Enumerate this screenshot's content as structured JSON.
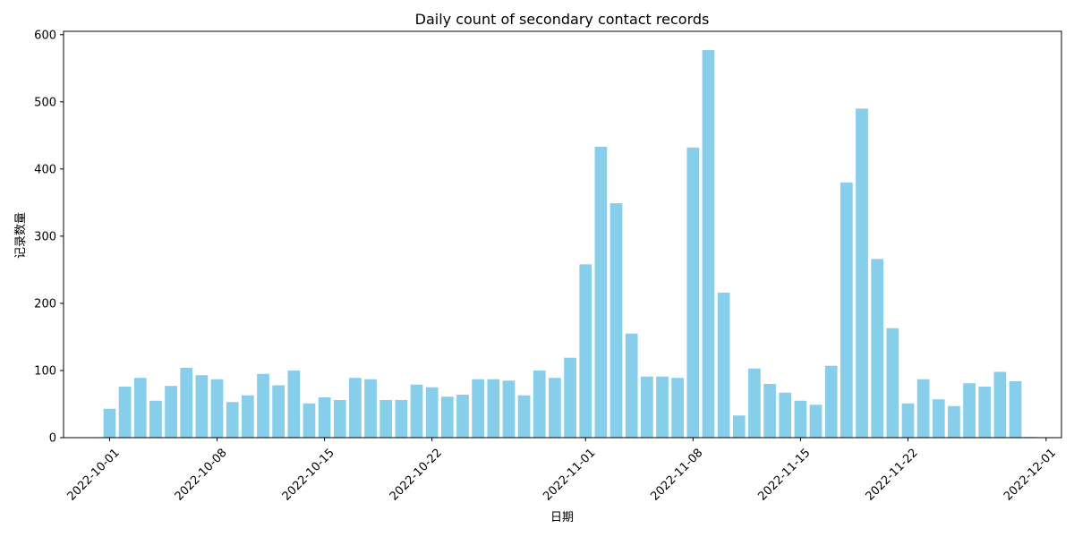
{
  "chart_data": {
    "type": "bar",
    "title": "Daily count of secondary contact records",
    "xlabel": "日期",
    "ylabel": "记录数量",
    "bar_color": "#87CEEB",
    "grid": false,
    "x_range": [
      "2022-09-28",
      "2022-12-02"
    ],
    "ylim": [
      0,
      605
    ],
    "y_ticks": [
      0,
      100,
      200,
      300,
      400,
      500,
      600
    ],
    "x_ticks": [
      "2022-10-01",
      "2022-10-08",
      "2022-10-15",
      "2022-10-22",
      "2022-11-01",
      "2022-11-08",
      "2022-11-15",
      "2022-11-22",
      "2022-12-01"
    ],
    "dates": [
      "2022-10-01",
      "2022-10-02",
      "2022-10-03",
      "2022-10-04",
      "2022-10-05",
      "2022-10-06",
      "2022-10-07",
      "2022-10-08",
      "2022-10-09",
      "2022-10-10",
      "2022-10-11",
      "2022-10-12",
      "2022-10-13",
      "2022-10-14",
      "2022-10-15",
      "2022-10-16",
      "2022-10-17",
      "2022-10-18",
      "2022-10-19",
      "2022-10-20",
      "2022-10-21",
      "2022-10-22",
      "2022-10-23",
      "2022-10-24",
      "2022-10-25",
      "2022-10-26",
      "2022-10-27",
      "2022-10-28",
      "2022-10-29",
      "2022-10-30",
      "2022-10-31",
      "2022-11-01",
      "2022-11-02",
      "2022-11-03",
      "2022-11-04",
      "2022-11-05",
      "2022-11-06",
      "2022-11-07",
      "2022-11-08",
      "2022-11-09",
      "2022-11-10",
      "2022-11-11",
      "2022-11-12",
      "2022-11-13",
      "2022-11-14",
      "2022-11-15",
      "2022-11-16",
      "2022-11-17",
      "2022-11-18",
      "2022-11-19",
      "2022-11-20",
      "2022-11-21",
      "2022-11-22",
      "2022-11-23",
      "2022-11-24",
      "2022-11-25",
      "2022-11-26",
      "2022-11-27",
      "2022-11-28",
      "2022-11-29",
      "2022-11-30"
    ],
    "values": [
      43,
      76,
      89,
      55,
      77,
      104,
      93,
      87,
      53,
      63,
      95,
      78,
      100,
      51,
      60,
      56,
      89,
      87,
      56,
      56,
      79,
      75,
      61,
      64,
      87,
      87,
      85,
      63,
      100,
      89,
      119,
      258,
      433,
      349,
      155,
      91,
      91,
      89,
      432,
      577,
      216,
      33,
      103,
      80,
      67,
      55,
      49,
      107,
      380,
      490,
      266,
      163,
      51,
      87,
      57,
      47,
      81,
      76,
      98,
      84,
      1
    ]
  }
}
